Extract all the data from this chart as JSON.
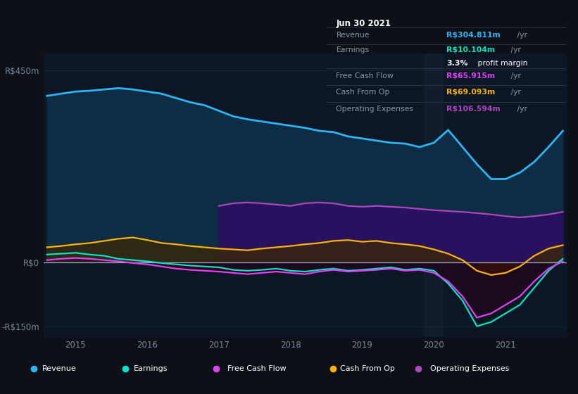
{
  "bg_color": "#0d1117",
  "plot_bg_color": "#0c1624",
  "title_box": {
    "date": "Jun 30 2021",
    "rows": [
      {
        "label": "Revenue",
        "value": "R$304.811m",
        "value_color": "#29b6f6",
        "suffix": " /yr",
        "extra": null
      },
      {
        "label": "Earnings",
        "value": "R$10.104m",
        "value_color": "#00e5c8",
        "suffix": " /yr",
        "extra": "3.3% profit margin"
      },
      {
        "label": "Free Cash Flow",
        "value": "R$65.915m",
        "value_color": "#e040fb",
        "suffix": " /yr",
        "extra": null
      },
      {
        "label": "Cash From Op",
        "value": "R$69.093m",
        "value_color": "#ffb300",
        "suffix": " /yr",
        "extra": null
      },
      {
        "label": "Operating Expenses",
        "value": "R$106.594m",
        "value_color": "#ab47bc",
        "suffix": " /yr",
        "extra": null
      }
    ]
  },
  "ylim": [
    -175,
    490
  ],
  "yticks": [
    -150,
    0,
    450
  ],
  "ytick_labels": [
    "-R$150m",
    "R$0",
    "R$450m"
  ],
  "xlim_start": 2014.55,
  "xlim_end": 2021.85,
  "xticks": [
    2015,
    2016,
    2017,
    2018,
    2019,
    2020,
    2021
  ],
  "revenue_color": "#29b6f6",
  "earnings_color": "#00e5c8",
  "fcf_color": "#e040fb",
  "cashfromop_color": "#ffb300",
  "opex_color": "#ab47bc",
  "legend_items": [
    {
      "label": "Revenue",
      "color": "#29b6f6"
    },
    {
      "label": "Earnings",
      "color": "#00e5c8"
    },
    {
      "label": "Free Cash Flow",
      "color": "#e040fb"
    },
    {
      "label": "Cash From Op",
      "color": "#ffb300"
    },
    {
      "label": "Operating Expenses",
      "color": "#ab47bc"
    }
  ],
  "time_points": [
    2014.6,
    2014.8,
    2015.0,
    2015.2,
    2015.4,
    2015.6,
    2015.8,
    2016.0,
    2016.2,
    2016.4,
    2016.6,
    2016.8,
    2017.0,
    2017.2,
    2017.4,
    2017.6,
    2017.8,
    2018.0,
    2018.2,
    2018.4,
    2018.6,
    2018.8,
    2019.0,
    2019.2,
    2019.4,
    2019.6,
    2019.8,
    2020.0,
    2020.2,
    2020.4,
    2020.6,
    2020.8,
    2021.0,
    2021.2,
    2021.4,
    2021.6,
    2021.8
  ],
  "revenue": [
    390,
    395,
    400,
    402,
    405,
    408,
    405,
    400,
    395,
    385,
    375,
    368,
    355,
    342,
    335,
    330,
    325,
    320,
    315,
    308,
    305,
    295,
    290,
    285,
    280,
    278,
    270,
    280,
    310,
    270,
    230,
    195,
    195,
    210,
    235,
    270,
    308
  ],
  "earnings": [
    18,
    20,
    22,
    18,
    15,
    8,
    5,
    2,
    -2,
    -5,
    -8,
    -10,
    -12,
    -18,
    -20,
    -18,
    -15,
    -20,
    -22,
    -18,
    -15,
    -20,
    -18,
    -15,
    -12,
    -18,
    -15,
    -20,
    -50,
    -90,
    -150,
    -140,
    -120,
    -100,
    -60,
    -20,
    8
  ],
  "fcf": [
    5,
    8,
    10,
    8,
    5,
    2,
    -2,
    -5,
    -10,
    -15,
    -18,
    -20,
    -22,
    -25,
    -28,
    -25,
    -22,
    -25,
    -28,
    -22,
    -18,
    -22,
    -20,
    -18,
    -15,
    -20,
    -18,
    -25,
    -45,
    -80,
    -130,
    -120,
    -100,
    -80,
    -45,
    -15,
    2
  ],
  "cashfromop": [
    35,
    38,
    42,
    45,
    50,
    55,
    58,
    52,
    45,
    42,
    38,
    35,
    32,
    30,
    28,
    32,
    35,
    38,
    42,
    45,
    50,
    52,
    48,
    50,
    45,
    42,
    38,
    30,
    20,
    5,
    -20,
    -30,
    -25,
    -10,
    15,
    32,
    40
  ],
  "opex": [
    0,
    0,
    0,
    0,
    0,
    0,
    0,
    0,
    0,
    0,
    0,
    0,
    132,
    138,
    140,
    138,
    135,
    132,
    138,
    140,
    138,
    132,
    130,
    132,
    130,
    128,
    125,
    122,
    120,
    118,
    115,
    112,
    108,
    105,
    108,
    112,
    118
  ]
}
